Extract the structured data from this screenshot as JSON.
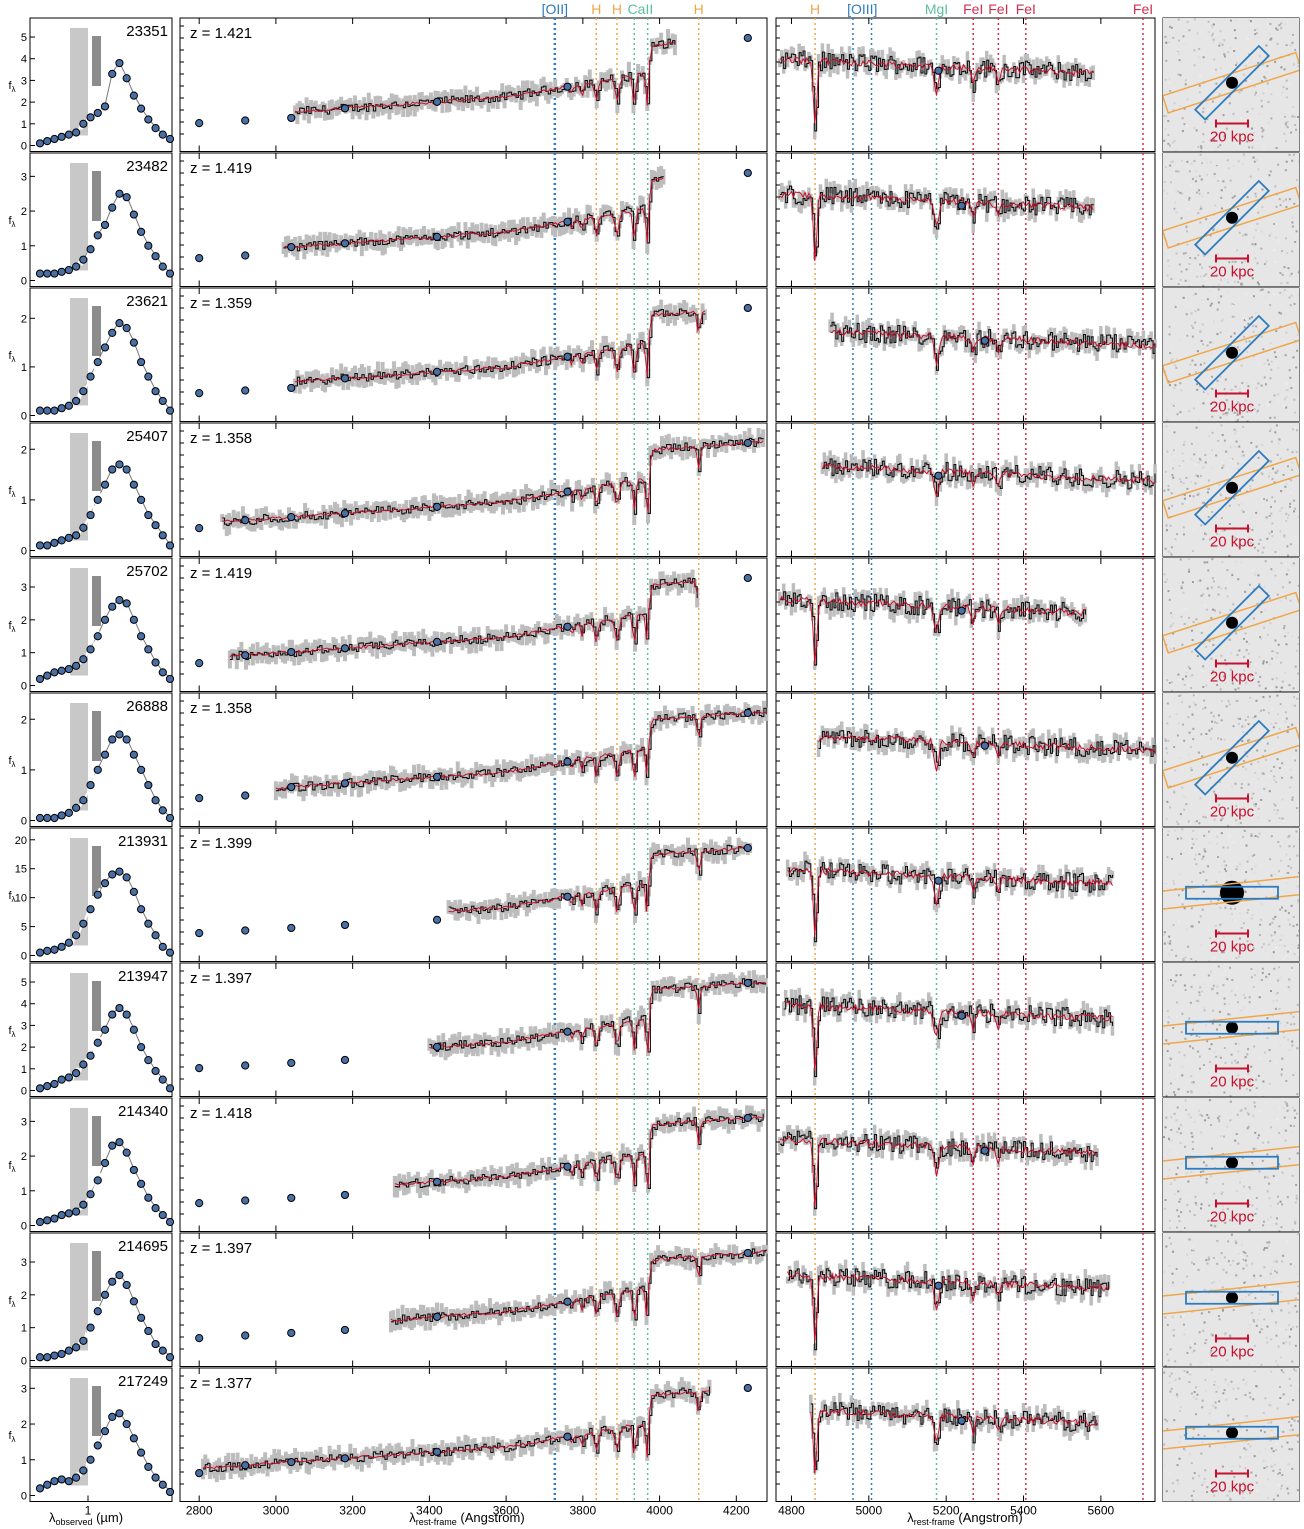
{
  "figure": {
    "sed_xlabel": "λobserved (µm)",
    "sed_xlabel_main": "λ",
    "sed_xlabel_sub": "observed",
    "sed_xlabel_unit": " (µm)",
    "sed_xtick": "1",
    "ylabel_main": "f",
    "ylabel_sub": "λ",
    "spec_xlabel": "λrest-frame (Angstrom)",
    "spec_xlabel_main": "λ",
    "spec_xlabel_sub": "rest-frame",
    "spec_xlabel_unit": " (Angstrom)",
    "scale_bar_label": "20 kpc",
    "colors": {
      "data_points": "#4a6fa5",
      "model": "#c8102e",
      "oii_oiii": "#2e7cc0",
      "balmer": "#f0a64a",
      "metal_green": "#5bbf9f",
      "iron": "#d03050",
      "slit_blue": "#2e7cc0",
      "slit_orange": "#f0a64a"
    }
  },
  "line_labels": [
    {
      "text": "[OII]",
      "wave": 3727,
      "color": "#2e7cc0",
      "panel": "left"
    },
    {
      "text": "H",
      "wave": 3835,
      "color": "#f0a64a",
      "panel": "left"
    },
    {
      "text": "H",
      "wave": 3889,
      "color": "#f0a64a",
      "panel": "left"
    },
    {
      "text": "CaII",
      "wave": 3950,
      "color": "#5bbf9f",
      "panel": "left"
    },
    {
      "text": "H",
      "wave": 4102,
      "color": "#f0a64a",
      "panel": "left"
    },
    {
      "text": "H",
      "wave": 4861,
      "color": "#f0a64a",
      "panel": "right"
    },
    {
      "text": "[OIII]",
      "wave": 4983,
      "color": "#2e7cc0",
      "panel": "right"
    },
    {
      "text": "MgI",
      "wave": 5175,
      "color": "#5bbf9f",
      "panel": "right"
    },
    {
      "text": "FeI",
      "wave": 5270,
      "color": "#d03050",
      "panel": "right"
    },
    {
      "text": "FeI",
      "wave": 5335,
      "color": "#d03050",
      "panel": "right"
    },
    {
      "text": "FeI",
      "wave": 5406,
      "color": "#d03050",
      "panel": "right"
    },
    {
      "text": "FeI",
      "wave": 5709,
      "color": "#d03050",
      "panel": "right"
    }
  ],
  "vlines": {
    "left": [
      {
        "wave": 3727,
        "color": "#2e7cc0",
        "heavy": true
      },
      {
        "wave": 3835,
        "color": "#f0a64a"
      },
      {
        "wave": 3889,
        "color": "#f0a64a"
      },
      {
        "wave": 3934,
        "color": "#5bbf9f"
      },
      {
        "wave": 3969,
        "color": "#5bbf9f"
      },
      {
        "wave": 4102,
        "color": "#f0a64a"
      }
    ],
    "right": [
      {
        "wave": 4861,
        "color": "#f0a64a"
      },
      {
        "wave": 4959,
        "color": "#2e7cc0"
      },
      {
        "wave": 5007,
        "color": "#2e7cc0"
      },
      {
        "wave": 5175,
        "color": "#5bbf9f"
      },
      {
        "wave": 5270,
        "color": "#d03050"
      },
      {
        "wave": 5335,
        "color": "#d03050"
      },
      {
        "wave": 5406,
        "color": "#d03050"
      },
      {
        "wave": 5709,
        "color": "#d03050"
      }
    ]
  },
  "axes": {
    "left_spec": {
      "xmin": 2750,
      "xmax": 4280,
      "ticks": [
        "2800",
        "3000",
        "3200",
        "3400",
        "3600",
        "3800",
        "4000",
        "4200"
      ]
    },
    "right_spec": {
      "xmin": 4760,
      "xmax": 5740,
      "ticks": [
        "4800",
        "5000",
        "5200",
        "5400",
        "5600"
      ]
    }
  },
  "chart_data": [
    {
      "type": "scatter",
      "id": "23351",
      "z_label": "z = 1.421",
      "yticks": [
        "0",
        "1",
        "2",
        "3",
        "4",
        "5"
      ],
      "ymax": 5.6,
      "sed": [
        0.1,
        0.2,
        0.3,
        0.4,
        0.5,
        0.6,
        1.0,
        1.3,
        1.5,
        1.8,
        3.3,
        3.8,
        3.1,
        2.3,
        1.7,
        1.2,
        0.8,
        0.5,
        0.3
      ],
      "spec_start": 3050,
      "spec_end": 4040,
      "right_start": 4770,
      "right_end": 5580
    },
    {
      "type": "scatter",
      "id": "23482",
      "z_label": "z = 1.419",
      "yticks": [
        "0",
        "1",
        "2",
        "3"
      ],
      "ymax": 3.5,
      "sed": [
        0.2,
        0.2,
        0.2,
        0.25,
        0.3,
        0.4,
        0.6,
        0.9,
        1.3,
        1.6,
        2.1,
        2.5,
        2.4,
        1.9,
        1.4,
        1.0,
        0.7,
        0.4,
        0.2
      ],
      "spec_start": 3020,
      "spec_end": 4010,
      "right_start": 4770,
      "right_end": 5580
    },
    {
      "type": "scatter",
      "id": "23621",
      "z_label": "z = 1.359",
      "yticks": [
        "0",
        "1",
        "2"
      ],
      "ymax": 2.5,
      "sed": [
        0.1,
        0.1,
        0.1,
        0.15,
        0.2,
        0.3,
        0.5,
        0.8,
        1.1,
        1.4,
        1.7,
        1.9,
        1.8,
        1.5,
        1.1,
        0.8,
        0.5,
        0.3,
        0.1
      ],
      "spec_start": 3050,
      "spec_end": 4120,
      "right_start": 4900,
      "right_end": 5740
    },
    {
      "type": "scatter",
      "id": "25407",
      "z_label": "z = 1.358",
      "yticks": [
        "0",
        "1",
        "2"
      ],
      "ymax": 2.4,
      "sed": [
        0.1,
        0.1,
        0.15,
        0.2,
        0.25,
        0.3,
        0.45,
        0.7,
        1.0,
        1.3,
        1.6,
        1.7,
        1.6,
        1.3,
        1.0,
        0.7,
        0.5,
        0.3,
        0.1
      ],
      "spec_start": 2860,
      "spec_end": 4270,
      "right_start": 4880,
      "right_end": 5740
    },
    {
      "type": "scatter",
      "id": "25702",
      "z_label": "z = 1.419",
      "yticks": [
        "0",
        "1",
        "2",
        "3"
      ],
      "ymax": 3.7,
      "sed": [
        0.2,
        0.3,
        0.4,
        0.45,
        0.5,
        0.6,
        0.8,
        1.1,
        1.5,
        2.0,
        2.4,
        2.6,
        2.5,
        2.0,
        1.5,
        1.1,
        0.7,
        0.4,
        0.2
      ],
      "spec_start": 2880,
      "spec_end": 4100,
      "right_start": 4770,
      "right_end": 5560
    },
    {
      "type": "scatter",
      "id": "26888",
      "z_label": "z = 1.358",
      "yticks": [
        "0",
        "1",
        "2"
      ],
      "ymax": 2.4,
      "sed": [
        0.05,
        0.05,
        0.05,
        0.1,
        0.15,
        0.25,
        0.4,
        0.7,
        1.0,
        1.3,
        1.6,
        1.7,
        1.6,
        1.3,
        1.0,
        0.7,
        0.4,
        0.2,
        0.05
      ],
      "spec_start": 3000,
      "spec_end": 4280,
      "right_start": 4870,
      "right_end": 5740
    },
    {
      "type": "scatter",
      "id": "213931",
      "z_label": "z = 1.399",
      "yticks": [
        "0",
        "5",
        "10",
        "15",
        "20"
      ],
      "ymax": 21,
      "sed": [
        0.5,
        0.8,
        1.0,
        1.5,
        2.2,
        3.5,
        5.5,
        8.0,
        10.5,
        12.5,
        14.0,
        14.5,
        13.5,
        11.0,
        8.0,
        5.5,
        3.5,
        1.5,
        0.5
      ],
      "spec_start": 3450,
      "spec_end": 4240,
      "right_start": 4790,
      "right_end": 5630
    },
    {
      "type": "scatter",
      "id": "213947",
      "z_label": "z = 1.397",
      "yticks": [
        "0",
        "1",
        "2",
        "3",
        "4",
        "5"
      ],
      "ymax": 5.6,
      "sed": [
        0.1,
        0.2,
        0.3,
        0.5,
        0.6,
        0.8,
        1.2,
        1.6,
        2.2,
        2.8,
        3.5,
        3.8,
        3.5,
        2.8,
        2.0,
        1.4,
        0.9,
        0.5,
        0.1
      ],
      "spec_start": 3400,
      "spec_end": 4280,
      "right_start": 4780,
      "right_end": 5630
    },
    {
      "type": "scatter",
      "id": "214340",
      "z_label": "z = 1.418",
      "yticks": [
        "0",
        "1",
        "2",
        "3"
      ],
      "ymax": 3.5,
      "sed": [
        0.1,
        0.15,
        0.2,
        0.3,
        0.35,
        0.4,
        0.6,
        0.9,
        1.3,
        1.8,
        2.3,
        2.4,
        2.1,
        1.6,
        1.2,
        0.8,
        0.5,
        0.3,
        0.1
      ],
      "spec_start": 3310,
      "spec_end": 4270,
      "right_start": 4770,
      "right_end": 5590
    },
    {
      "type": "scatter",
      "id": "214695",
      "z_label": "z = 1.397",
      "yticks": [
        "0",
        "1",
        "2",
        "3"
      ],
      "ymax": 3.7,
      "sed": [
        0.1,
        0.1,
        0.15,
        0.2,
        0.3,
        0.4,
        0.6,
        1.0,
        1.5,
        2.0,
        2.4,
        2.6,
        2.3,
        1.8,
        1.3,
        0.9,
        0.5,
        0.3,
        0.1
      ],
      "spec_start": 3300,
      "spec_end": 4280,
      "right_start": 4790,
      "right_end": 5620
    },
    {
      "type": "scatter",
      "id": "217249",
      "z_label": "z = 1.377",
      "yticks": [
        "0",
        "1",
        "2",
        "3"
      ],
      "ymax": 3.4,
      "sed": [
        0.2,
        0.3,
        0.4,
        0.45,
        0.4,
        0.5,
        0.7,
        1.0,
        1.4,
        1.8,
        2.2,
        2.3,
        2.0,
        1.6,
        1.2,
        0.8,
        0.5,
        0.3,
        0.1
      ],
      "spec_start": 2810,
      "spec_end": 4130,
      "right_start": 4850,
      "right_end": 5590
    }
  ]
}
